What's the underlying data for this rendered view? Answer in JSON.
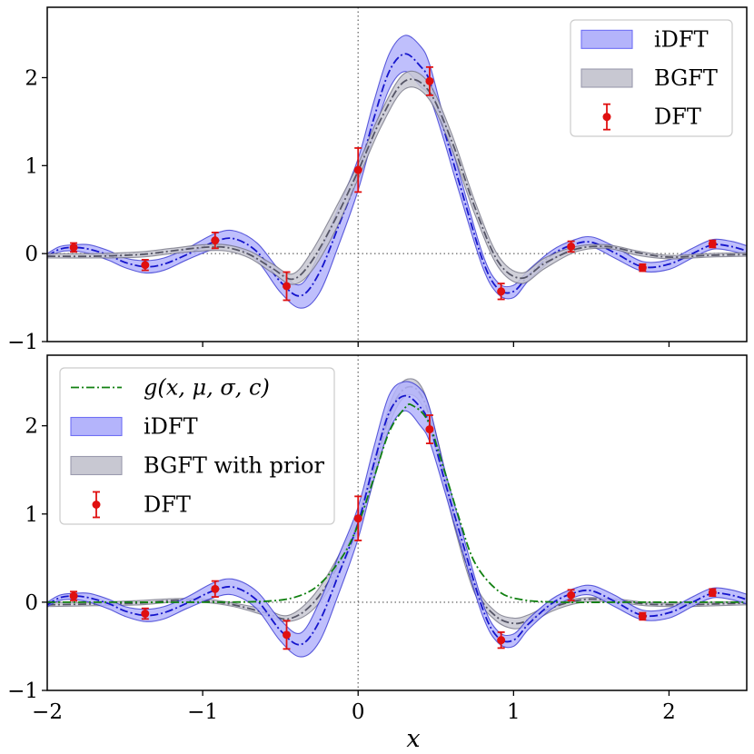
{
  "chart_data": [
    {
      "type": "line",
      "panel": "top",
      "xlabel": "",
      "ylabel": "",
      "xlim": [
        -2,
        2.5
      ],
      "ylim": [
        -1,
        2.8
      ],
      "xticks": [],
      "yticks": [
        -1,
        0,
        1,
        2
      ],
      "ytick_labels": [
        "−1",
        "0",
        "1",
        "2"
      ],
      "reference_lines": {
        "x": 0,
        "y": 0,
        "style": "dotted"
      },
      "legend": {
        "placement": "top-right",
        "entries": [
          {
            "label": "iDFT",
            "kind": "band",
            "color": "#6f6ff5"
          },
          {
            "label": "BGFT",
            "kind": "band",
            "color": "#9a9aae"
          },
          {
            "label": "DFT",
            "kind": "errorbar",
            "color": "#e01010"
          }
        ]
      },
      "series": [
        {
          "name": "iDFT",
          "kind": "band",
          "color": "#2222cc",
          "fill": "#b4b4fb",
          "x": [
            -2.0,
            -1.92,
            -1.83,
            -1.73,
            -1.6,
            -1.5,
            -1.37,
            -1.25,
            -1.1,
            -0.93,
            -0.8,
            -0.65,
            -0.5,
            -0.37,
            -0.25,
            -0.12,
            0.0,
            0.1,
            0.2,
            0.3,
            0.4,
            0.46,
            0.55,
            0.65,
            0.8,
            0.9,
            1.0,
            1.1,
            1.25,
            1.38,
            1.5,
            1.65,
            1.83,
            2.0,
            2.15,
            2.28,
            2.4,
            2.5
          ],
          "lower": [
            -0.05,
            0.02,
            0.03,
            0.0,
            -0.08,
            -0.16,
            -0.22,
            -0.19,
            -0.07,
            0.05,
            0.08,
            -0.08,
            -0.44,
            -0.62,
            -0.45,
            0.12,
            0.72,
            1.35,
            1.87,
            2.07,
            1.9,
            1.78,
            1.3,
            0.7,
            -0.15,
            -0.46,
            -0.5,
            -0.3,
            -0.07,
            0.05,
            0.08,
            -0.05,
            -0.2,
            -0.18,
            -0.05,
            0.05,
            0.03,
            -0.02
          ],
          "upper": [
            0.0,
            0.08,
            0.1,
            0.1,
            0.03,
            -0.05,
            -0.08,
            -0.05,
            0.06,
            0.22,
            0.26,
            0.12,
            -0.2,
            -0.35,
            0.0,
            0.55,
            1.08,
            1.72,
            2.27,
            2.48,
            2.36,
            2.15,
            1.55,
            0.92,
            0.0,
            -0.33,
            -0.36,
            -0.18,
            0.04,
            0.15,
            0.19,
            0.08,
            -0.09,
            -0.07,
            0.06,
            0.16,
            0.14,
            0.09
          ]
        },
        {
          "name": "iDFT",
          "kind": "mean-dashdot",
          "color": "#1515cc",
          "x": [
            -2.0,
            -1.92,
            -1.83,
            -1.73,
            -1.6,
            -1.5,
            -1.37,
            -1.25,
            -1.1,
            -0.93,
            -0.8,
            -0.65,
            -0.5,
            -0.37,
            -0.25,
            -0.12,
            0.0,
            0.1,
            0.2,
            0.3,
            0.4,
            0.46,
            0.55,
            0.65,
            0.8,
            0.9,
            1.0,
            1.1,
            1.25,
            1.38,
            1.5,
            1.65,
            1.83,
            2.0,
            2.15,
            2.28,
            2.4,
            2.5
          ],
          "y": [
            -0.03,
            0.05,
            0.07,
            0.05,
            -0.02,
            -0.1,
            -0.15,
            -0.12,
            -0.01,
            0.13,
            0.17,
            0.02,
            -0.32,
            -0.48,
            -0.22,
            0.34,
            0.9,
            1.53,
            2.07,
            2.27,
            2.13,
            1.96,
            1.42,
            0.81,
            -0.07,
            -0.4,
            -0.43,
            -0.24,
            -0.01,
            0.1,
            0.13,
            0.01,
            -0.15,
            -0.12,
            0.0,
            0.1,
            0.08,
            0.03
          ]
        },
        {
          "name": "BGFT",
          "kind": "band",
          "color": "#666677",
          "fill": "#c8c8d2",
          "x": [
            -2.0,
            -1.7,
            -1.4,
            -1.2,
            -1.0,
            -0.85,
            -0.7,
            -0.55,
            -0.42,
            -0.3,
            -0.15,
            0.0,
            0.15,
            0.3,
            0.45,
            0.6,
            0.75,
            0.9,
            1.05,
            1.2,
            1.4,
            1.6,
            1.8,
            2.0,
            2.25,
            2.5
          ],
          "lower": [
            -0.05,
            -0.05,
            -0.04,
            0.0,
            0.03,
            0.03,
            -0.05,
            -0.22,
            -0.35,
            -0.2,
            0.25,
            0.85,
            1.45,
            1.87,
            1.77,
            1.2,
            0.45,
            -0.15,
            -0.34,
            -0.17,
            0.02,
            0.06,
            -0.02,
            -0.06,
            -0.04,
            -0.03
          ],
          "upper": [
            0.0,
            0.0,
            0.02,
            0.06,
            0.1,
            0.1,
            0.03,
            -0.12,
            -0.23,
            0.02,
            0.5,
            1.02,
            1.62,
            2.05,
            1.95,
            1.37,
            0.6,
            -0.02,
            -0.22,
            -0.05,
            0.08,
            0.1,
            0.03,
            -0.02,
            0.0,
            0.01
          ]
        },
        {
          "name": "BGFT",
          "kind": "mean-dashdot",
          "color": "#555566",
          "x": [
            -2.0,
            -1.7,
            -1.4,
            -1.2,
            -1.0,
            -0.85,
            -0.7,
            -0.55,
            -0.42,
            -0.3,
            -0.15,
            0.0,
            0.15,
            0.3,
            0.45,
            0.6,
            0.75,
            0.9,
            1.05,
            1.2,
            1.4,
            1.6,
            1.8,
            2.0,
            2.25,
            2.5
          ],
          "y": [
            -0.03,
            -0.03,
            -0.01,
            0.03,
            0.07,
            0.07,
            -0.01,
            -0.17,
            -0.29,
            -0.09,
            0.38,
            0.94,
            1.54,
            1.96,
            1.86,
            1.29,
            0.53,
            -0.09,
            -0.28,
            -0.11,
            0.05,
            0.08,
            0.01,
            -0.04,
            -0.02,
            -0.01
          ]
        },
        {
          "name": "DFT",
          "kind": "errorbar",
          "color": "#e01010",
          "x": [
            -1.83,
            -1.37,
            -0.92,
            -0.46,
            0.0,
            0.46,
            0.92,
            1.37,
            1.83,
            2.28
          ],
          "y": [
            0.07,
            -0.13,
            0.15,
            -0.37,
            0.95,
            1.96,
            -0.43,
            0.08,
            -0.16,
            0.11
          ],
          "err": [
            0.05,
            0.06,
            0.09,
            0.16,
            0.25,
            0.16,
            0.09,
            0.06,
            0.04,
            0.04
          ]
        }
      ]
    },
    {
      "type": "line",
      "panel": "bottom",
      "xlabel": "x",
      "ylabel": "",
      "xlim": [
        -2,
        2.5
      ],
      "ylim": [
        -1,
        2.8
      ],
      "xticks": [
        -2,
        -1,
        0,
        1,
        2
      ],
      "xtick_labels": [
        "−2",
        "−1",
        "0",
        "1",
        "2"
      ],
      "yticks": [
        -1,
        0,
        1,
        2
      ],
      "ytick_labels": [
        "−1",
        "0",
        "1",
        "2"
      ],
      "reference_lines": {
        "x": 0,
        "y": 0,
        "style": "dotted"
      },
      "legend": {
        "placement": "top-left",
        "entries": [
          {
            "label": "g(x, μ, σ, c)",
            "kind": "line-dashdot",
            "color": "#108010"
          },
          {
            "label": "iDFT",
            "kind": "band",
            "color": "#6f6ff5"
          },
          {
            "label": "BGFT with prior",
            "kind": "band",
            "color": "#9a9aae"
          },
          {
            "label": "DFT",
            "kind": "errorbar",
            "color": "#e01010"
          }
        ]
      },
      "series": [
        {
          "name": "BGFT with prior",
          "kind": "band",
          "color": "#666677",
          "fill": "#c8c8d2",
          "x": [
            -2.0,
            -1.7,
            -1.4,
            -1.2,
            -1.0,
            -0.8,
            -0.6,
            -0.45,
            -0.3,
            -0.15,
            0.0,
            0.12,
            0.22,
            0.32,
            0.42,
            0.52,
            0.62,
            0.75,
            0.88,
            1.0,
            1.1,
            1.25,
            1.45,
            1.65,
            1.85,
            2.1,
            2.3,
            2.5
          ],
          "lower": [
            -0.05,
            -0.04,
            -0.03,
            0.0,
            0.0,
            -0.05,
            -0.15,
            -0.22,
            -0.1,
            0.25,
            0.82,
            1.5,
            2.1,
            2.35,
            2.2,
            1.6,
            0.85,
            0.1,
            -0.2,
            -0.3,
            -0.25,
            -0.1,
            0.0,
            0.0,
            -0.04,
            -0.05,
            -0.04,
            -0.03
          ],
          "upper": [
            0.0,
            0.0,
            0.02,
            0.04,
            0.04,
            -0.01,
            -0.08,
            -0.15,
            0.05,
            0.45,
            1.0,
            1.72,
            2.32,
            2.53,
            2.4,
            1.78,
            1.0,
            0.22,
            -0.1,
            -0.18,
            -0.14,
            -0.02,
            0.05,
            0.04,
            0.0,
            -0.01,
            0.0,
            0.01
          ]
        },
        {
          "name": "BGFT with prior",
          "kind": "mean-dashdot",
          "color": "#555566",
          "x": [
            -2.0,
            -1.7,
            -1.4,
            -1.2,
            -1.0,
            -0.8,
            -0.6,
            -0.45,
            -0.3,
            -0.15,
            0.0,
            0.12,
            0.22,
            0.32,
            0.42,
            0.52,
            0.62,
            0.75,
            0.88,
            1.0,
            1.1,
            1.25,
            1.45,
            1.65,
            1.85,
            2.1,
            2.3,
            2.5
          ],
          "y": [
            -0.03,
            -0.02,
            -0.01,
            0.02,
            0.02,
            -0.03,
            -0.12,
            -0.19,
            -0.03,
            0.35,
            0.91,
            1.61,
            2.21,
            2.44,
            2.3,
            1.69,
            0.93,
            0.16,
            -0.15,
            -0.24,
            -0.2,
            -0.06,
            0.03,
            0.02,
            -0.02,
            -0.03,
            -0.02,
            -0.01
          ]
        },
        {
          "name": "iDFT",
          "kind": "band",
          "color": "#2222cc",
          "fill": "#b4b4fb",
          "x": [
            -2.0,
            -1.92,
            -1.83,
            -1.73,
            -1.6,
            -1.5,
            -1.37,
            -1.25,
            -1.1,
            -0.93,
            -0.8,
            -0.65,
            -0.5,
            -0.37,
            -0.25,
            -0.12,
            0.0,
            0.1,
            0.2,
            0.3,
            0.4,
            0.46,
            0.55,
            0.65,
            0.8,
            0.9,
            1.0,
            1.1,
            1.25,
            1.38,
            1.5,
            1.65,
            1.83,
            2.0,
            2.15,
            2.28,
            2.4,
            2.5
          ],
          "lower": [
            -0.05,
            0.02,
            0.03,
            0.0,
            -0.08,
            -0.16,
            -0.22,
            -0.19,
            -0.07,
            0.05,
            0.08,
            -0.08,
            -0.44,
            -0.62,
            -0.45,
            0.12,
            0.72,
            1.38,
            1.95,
            2.17,
            2.0,
            1.82,
            1.3,
            0.7,
            -0.15,
            -0.46,
            -0.5,
            -0.3,
            -0.07,
            0.05,
            0.08,
            -0.05,
            -0.2,
            -0.18,
            -0.05,
            0.05,
            0.03,
            -0.02
          ],
          "upper": [
            0.0,
            0.08,
            0.1,
            0.1,
            0.03,
            -0.05,
            -0.08,
            -0.05,
            0.06,
            0.22,
            0.26,
            0.12,
            -0.2,
            -0.35,
            0.0,
            0.55,
            1.08,
            1.75,
            2.35,
            2.5,
            2.42,
            2.2,
            1.55,
            0.92,
            0.0,
            -0.33,
            -0.36,
            -0.18,
            0.04,
            0.15,
            0.19,
            0.08,
            -0.09,
            -0.07,
            0.06,
            0.16,
            0.14,
            0.09
          ]
        },
        {
          "name": "iDFT",
          "kind": "mean-dashdot",
          "color": "#1515cc",
          "x": [
            -2.0,
            -1.92,
            -1.83,
            -1.73,
            -1.6,
            -1.5,
            -1.37,
            -1.25,
            -1.1,
            -0.93,
            -0.8,
            -0.65,
            -0.5,
            -0.37,
            -0.25,
            -0.12,
            0.0,
            0.1,
            0.2,
            0.3,
            0.4,
            0.46,
            0.55,
            0.65,
            0.8,
            0.9,
            1.0,
            1.1,
            1.25,
            1.38,
            1.5,
            1.65,
            1.83,
            2.0,
            2.15,
            2.28,
            2.4,
            2.5
          ],
          "y": [
            -0.03,
            0.05,
            0.07,
            0.05,
            -0.02,
            -0.1,
            -0.15,
            -0.12,
            -0.01,
            0.13,
            0.17,
            0.02,
            -0.32,
            -0.48,
            -0.22,
            0.34,
            0.9,
            1.56,
            2.15,
            2.34,
            2.21,
            2.01,
            1.42,
            0.81,
            -0.07,
            -0.4,
            -0.43,
            -0.24,
            -0.01,
            0.1,
            0.13,
            0.01,
            -0.15,
            -0.12,
            0.0,
            0.1,
            0.08,
            0.03
          ]
        },
        {
          "name": "g(x, μ, σ, c)",
          "kind": "line-dashdot",
          "color": "#108010",
          "x": [
            -2.0,
            -1.5,
            -1.0,
            -0.6,
            -0.4,
            -0.25,
            -0.1,
            0.0,
            0.1,
            0.2,
            0.3,
            0.35,
            0.45,
            0.55,
            0.65,
            0.75,
            0.9,
            1.05,
            1.3,
            1.8,
            2.5
          ],
          "y": [
            0.0,
            0.0,
            0.0,
            0.01,
            0.06,
            0.2,
            0.52,
            0.88,
            1.4,
            1.93,
            2.2,
            2.23,
            2.05,
            1.52,
            0.95,
            0.45,
            0.13,
            0.03,
            0.0,
            0.0,
            0.0
          ]
        },
        {
          "name": "DFT",
          "kind": "errorbar",
          "color": "#e01010",
          "x": [
            -1.83,
            -1.37,
            -0.92,
            -0.46,
            0.0,
            0.46,
            0.92,
            1.37,
            1.83,
            2.28
          ],
          "y": [
            0.07,
            -0.13,
            0.15,
            -0.37,
            0.95,
            1.96,
            -0.43,
            0.08,
            -0.16,
            0.11
          ],
          "err": [
            0.05,
            0.06,
            0.09,
            0.16,
            0.25,
            0.16,
            0.09,
            0.06,
            0.04,
            0.04
          ]
        }
      ]
    }
  ]
}
